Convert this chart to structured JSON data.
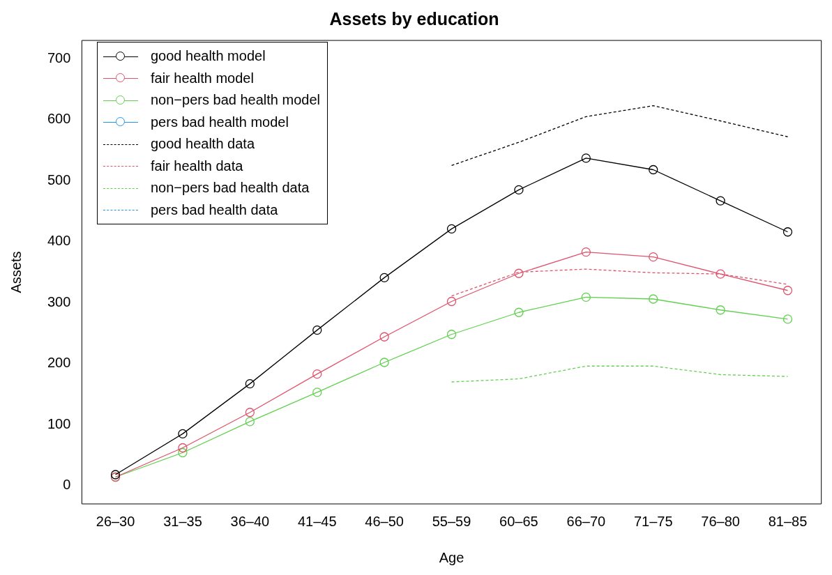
{
  "chart_data": {
    "type": "line",
    "title": "Assets by education",
    "xlabel": "Age",
    "ylabel": "Assets",
    "categories": [
      "26–30",
      "31–35",
      "36–40",
      "41–45",
      "46–50",
      "55–59",
      "60–65",
      "66–70",
      "71–75",
      "76–80",
      "81–85"
    ],
    "ylim": [
      -30,
      730
    ],
    "yticks": [
      0,
      100,
      200,
      300,
      400,
      500,
      600,
      700
    ],
    "grid": false,
    "legend": "top left",
    "series": [
      {
        "name": "good health model",
        "color": "#000000",
        "marker": "circle",
        "line_style": "solid",
        "values": [
          18,
          85,
          167,
          255,
          341,
          421,
          485,
          537,
          518,
          467,
          416
        ]
      },
      {
        "name": "fair health model",
        "color": "#df536b",
        "marker": "circle",
        "line_style": "solid",
        "values": [
          14,
          62,
          120,
          183,
          244,
          302,
          348,
          383,
          375,
          347,
          320
        ]
      },
      {
        "name": "non−pers bad health model",
        "color": "#61d04f",
        "marker": "circle",
        "line_style": "solid",
        "values": [
          14,
          54,
          105,
          153,
          202,
          248,
          284,
          309,
          306,
          288,
          273
        ]
      },
      {
        "name": "pers bad health model",
        "color": "#2297e6",
        "marker": "circle",
        "line_style": "solid",
        "values": [
          null,
          null,
          null,
          null,
          null,
          null,
          null,
          null,
          null,
          null,
          null
        ]
      },
      {
        "name": "good health data",
        "color": "#000000",
        "marker": "none",
        "line_style": "dashed",
        "values": [
          null,
          null,
          null,
          null,
          null,
          525,
          563,
          605,
          623,
          598,
          572
        ]
      },
      {
        "name": "fair health data",
        "color": "#df536b",
        "marker": "none",
        "line_style": "dashed",
        "values": [
          null,
          null,
          null,
          null,
          null,
          311,
          350,
          355,
          349,
          347,
          330
        ]
      },
      {
        "name": "non−pers bad health data",
        "color": "#61d04f",
        "marker": "none",
        "line_style": "dashed",
        "values": [
          null,
          null,
          null,
          null,
          null,
          170,
          175,
          196,
          196,
          182,
          179
        ]
      },
      {
        "name": "pers bad health data",
        "color": "#2297e6",
        "marker": "none",
        "line_style": "dashed",
        "values": [
          null,
          null,
          null,
          null,
          null,
          null,
          null,
          null,
          null,
          null,
          null
        ]
      }
    ]
  }
}
